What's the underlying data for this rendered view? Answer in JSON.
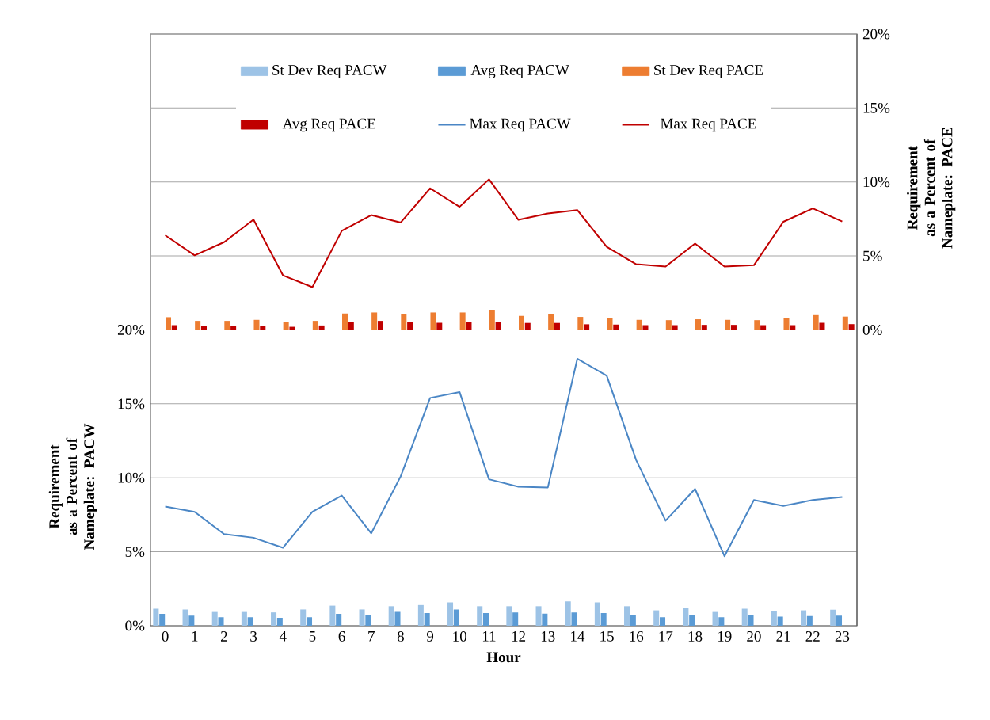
{
  "chart_data": {
    "type": "bar",
    "xlabel": "Hour",
    "ylabel": "Requirement as a Percent of Nameplate: PACW",
    "y2label": "Requirement as a Percent of Nameplate: PACE",
    "categories": [
      "0",
      "1",
      "2",
      "3",
      "4",
      "5",
      "6",
      "7",
      "8",
      "9",
      "10",
      "11",
      "12",
      "13",
      "14",
      "15",
      "16",
      "17",
      "18",
      "19",
      "20",
      "21",
      "22",
      "23"
    ],
    "series": [
      {
        "name": "St Dev Req PACW",
        "color": "#9dc3e6",
        "values": [
          1.15,
          1.1,
          0.93,
          0.93,
          0.9,
          1.1,
          1.36,
          1.1,
          1.32,
          1.4,
          1.58,
          1.32,
          1.32,
          1.32,
          1.65,
          1.58,
          1.32,
          1.04,
          1.18,
          0.93,
          1.15,
          0.97,
          1.04,
          1.08
        ]
      },
      {
        "name": "Avg Req PACW",
        "color": "#5b9bd5",
        "values": [
          0.8,
          0.68,
          0.57,
          0.57,
          0.54,
          0.57,
          0.8,
          0.75,
          0.93,
          0.86,
          1.1,
          0.86,
          0.9,
          0.82,
          0.9,
          0.86,
          0.75,
          0.57,
          0.75,
          0.57,
          0.72,
          0.61,
          0.65,
          0.68
        ]
      },
      {
        "name": "St Dev Req PACE",
        "axis": "y2",
        "color": "#ed7d31",
        "values": [
          0.86,
          0.61,
          0.61,
          0.68,
          0.55,
          0.61,
          1.11,
          1.18,
          1.06,
          1.18,
          1.18,
          1.31,
          0.95,
          1.06,
          0.88,
          0.81,
          0.68,
          0.66,
          0.72,
          0.68,
          0.66,
          0.82,
          1.0,
          0.9
        ]
      },
      {
        "name": "Avg Req PACE",
        "axis": "y2",
        "color": "#c00000",
        "values": [
          0.32,
          0.25,
          0.25,
          0.25,
          0.21,
          0.3,
          0.54,
          0.61,
          0.54,
          0.48,
          0.52,
          0.52,
          0.47,
          0.47,
          0.38,
          0.36,
          0.32,
          0.32,
          0.34,
          0.34,
          0.32,
          0.32,
          0.48,
          0.39
        ]
      },
      {
        "name": "Max Req PACW",
        "type": "line",
        "color": "#4a86c5",
        "values": [
          8.06,
          7.7,
          6.2,
          5.95,
          5.27,
          7.7,
          8.8,
          6.25,
          10.1,
          15.4,
          15.8,
          9.9,
          9.4,
          9.35,
          18.05,
          16.9,
          11.2,
          7.1,
          9.25,
          4.7,
          8.5,
          8.1,
          8.5,
          8.7
        ]
      },
      {
        "name": "Max Req PACE",
        "type": "line",
        "axis": "y2",
        "color": "#c00000",
        "values": [
          6.4,
          5.04,
          5.93,
          7.46,
          3.69,
          2.89,
          6.7,
          7.76,
          7.26,
          9.57,
          8.32,
          10.18,
          7.44,
          7.87,
          8.1,
          5.61,
          4.44,
          4.28,
          5.84,
          4.28,
          4.37,
          7.31,
          8.21,
          7.33
        ]
      }
    ],
    "ylim": [
      0,
      40
    ],
    "yticks": [
      {
        "value": 0,
        "label": "0%"
      },
      {
        "value": 5,
        "label": "5%"
      },
      {
        "value": 10,
        "label": "10%"
      },
      {
        "value": 15,
        "label": "15%"
      },
      {
        "value": 20,
        "label": "20%"
      }
    ],
    "y2lim": [
      -20,
      20
    ],
    "y2ticks": [
      {
        "value": 0,
        "label": "0%"
      },
      {
        "value": 5,
        "label": "5%"
      },
      {
        "value": 10,
        "label": "10%"
      },
      {
        "value": 15,
        "label": "15%"
      },
      {
        "value": 20,
        "label": "20%"
      }
    ],
    "grid": "y",
    "legend": "top",
    "marker": "none",
    "line_style": "solid"
  }
}
